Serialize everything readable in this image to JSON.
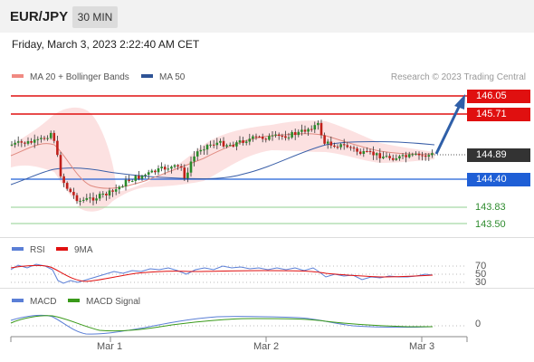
{
  "header": {
    "symbol": "EUR/JPY",
    "timeframe": "30 MIN"
  },
  "datetime": "Friday, March 3, 2023 2:22:40 AM CET",
  "legend": {
    "ma20": {
      "label": "MA 20 + Bollinger Bands",
      "color": "#f08a82"
    },
    "ma50": {
      "label": "MA 50",
      "color": "#2f5496"
    }
  },
  "credit": "Research © 2023 Trading Central",
  "levels": {
    "r2": {
      "value": "146.05",
      "color": "#e01010"
    },
    "r1": {
      "value": "145.71",
      "color": "#e01010"
    },
    "current": {
      "value": "144.89",
      "color": "#333333"
    },
    "pivot": {
      "value": "144.40",
      "color": "#1f5fd6"
    },
    "s1": {
      "value": "143.83",
      "color": "#2e8b2e"
    },
    "s2": {
      "value": "143.50",
      "color": "#2e8b2e"
    }
  },
  "rsi_panel": {
    "legend": [
      {
        "label": "RSI",
        "color": "#5b7fd6"
      },
      {
        "label": "9MA",
        "color": "#e01010"
      }
    ],
    "levels": [
      "70",
      "50",
      "30"
    ]
  },
  "macd_panel": {
    "legend": [
      {
        "label": "MACD",
        "color": "#5b7fd6"
      },
      {
        "label": "MACD Signal",
        "color": "#3a9a1a"
      }
    ],
    "zero_label": "0"
  },
  "xaxis": [
    "Mar 1",
    "Mar 2",
    "Mar 3"
  ]
}
